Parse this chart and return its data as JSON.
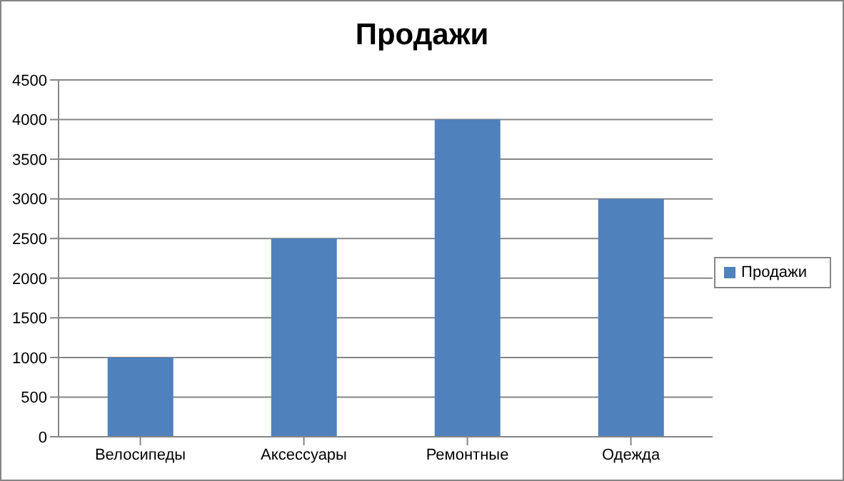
{
  "chart_data": {
    "type": "bar",
    "title": "Продажи",
    "categories": [
      "Велосипеды",
      "Аксессуары",
      "Ремонтные",
      "Одежда"
    ],
    "series": [
      {
        "name": "Продажи",
        "color": "#4f81bd",
        "values": [
          1000,
          2500,
          4000,
          3000
        ]
      }
    ],
    "ylim": [
      0,
      4500
    ],
    "yticks": [
      0,
      500,
      1000,
      1500,
      2000,
      2500,
      3000,
      3500,
      4000,
      4500
    ],
    "grid": "y",
    "legend": "right"
  }
}
